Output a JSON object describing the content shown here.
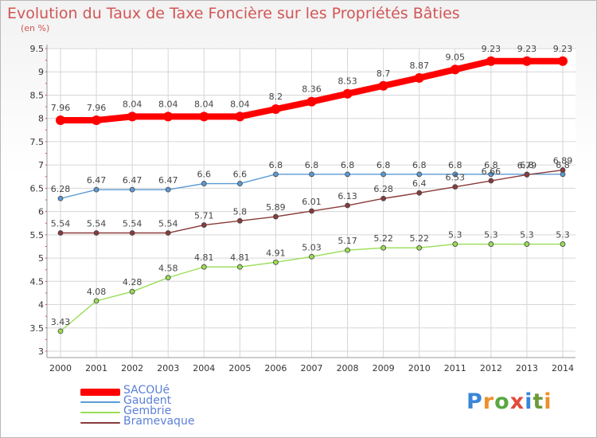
{
  "logo_text": "Proxiti",
  "chart_data": {
    "type": "line",
    "title": "Evolution du Taux de Taxe Foncière sur les Propriétés Bâties",
    "subtitle": "(en %)",
    "x": [
      "2000",
      "2001",
      "2002",
      "2003",
      "2004",
      "2005",
      "2006",
      "2007",
      "2008",
      "2009",
      "2010",
      "2011",
      "2012",
      "2013",
      "2014"
    ],
    "yticks": [
      "3",
      "3.5",
      "4",
      "4.5",
      "5",
      "5.5",
      "6",
      "6.5",
      "7",
      "7.5",
      "8",
      "8.5",
      "9",
      "9.5"
    ],
    "ylim": [
      3,
      9.5
    ],
    "grid": true,
    "legend_position": "bottom-left",
    "series": [
      {
        "name": "SACOUé",
        "color": "#ff0000",
        "values": [
          7.96,
          7.96,
          8.04,
          8.04,
          8.04,
          8.04,
          8.2,
          8.36,
          8.53,
          8.7,
          8.87,
          9.05,
          9.23,
          9.23,
          9.23
        ],
        "labels": [
          "7.96",
          "7.96",
          "8.04",
          "8.04",
          "8.04",
          "8.04",
          "8.2",
          "8.36",
          "8.53",
          "8.7",
          "8.87",
          "9.05",
          "9.23",
          "9.23",
          "9.23"
        ]
      },
      {
        "name": "Gaudent",
        "color": "#5b9bd5",
        "values": [
          6.28,
          6.47,
          6.47,
          6.47,
          6.6,
          6.6,
          6.8,
          6.8,
          6.8,
          6.8,
          6.8,
          6.8,
          6.8,
          6.8,
          6.8
        ],
        "labels": [
          "6.28",
          "6.47",
          "6.47",
          "6.47",
          "6.6",
          "6.6",
          "6.8",
          "6.8",
          "6.8",
          "6.8",
          "6.8",
          "6.8",
          "6.8",
          "6.8",
          "6.8"
        ]
      },
      {
        "name": "Gembrie",
        "color": "#99dd55",
        "values": [
          3.43,
          4.08,
          4.28,
          4.58,
          4.81,
          4.81,
          4.91,
          5.03,
          5.17,
          5.22,
          5.22,
          5.3,
          5.3,
          5.3,
          5.3
        ],
        "labels": [
          "3.43",
          "4.08",
          "4.28",
          "4.58",
          "4.81",
          "4.81",
          "4.91",
          "5.03",
          "5.17",
          "5.22",
          "5.22",
          "5.3",
          "5.3",
          "5.3",
          "5.3"
        ]
      },
      {
        "name": "Bramevaque",
        "color": "#8a3a3a",
        "values": [
          5.54,
          5.54,
          5.54,
          5.54,
          5.71,
          5.8,
          5.89,
          6.01,
          6.13,
          6.28,
          6.4,
          6.53,
          6.66,
          6.79,
          6.89
        ],
        "labels": [
          "5.54",
          "5.54",
          "5.54",
          "5.54",
          "5.71",
          "5.8",
          "5.89",
          "6.01",
          "6.13",
          "6.28",
          "6.4",
          "6.53",
          "6.66",
          "6.79",
          "6.89"
        ]
      }
    ]
  }
}
